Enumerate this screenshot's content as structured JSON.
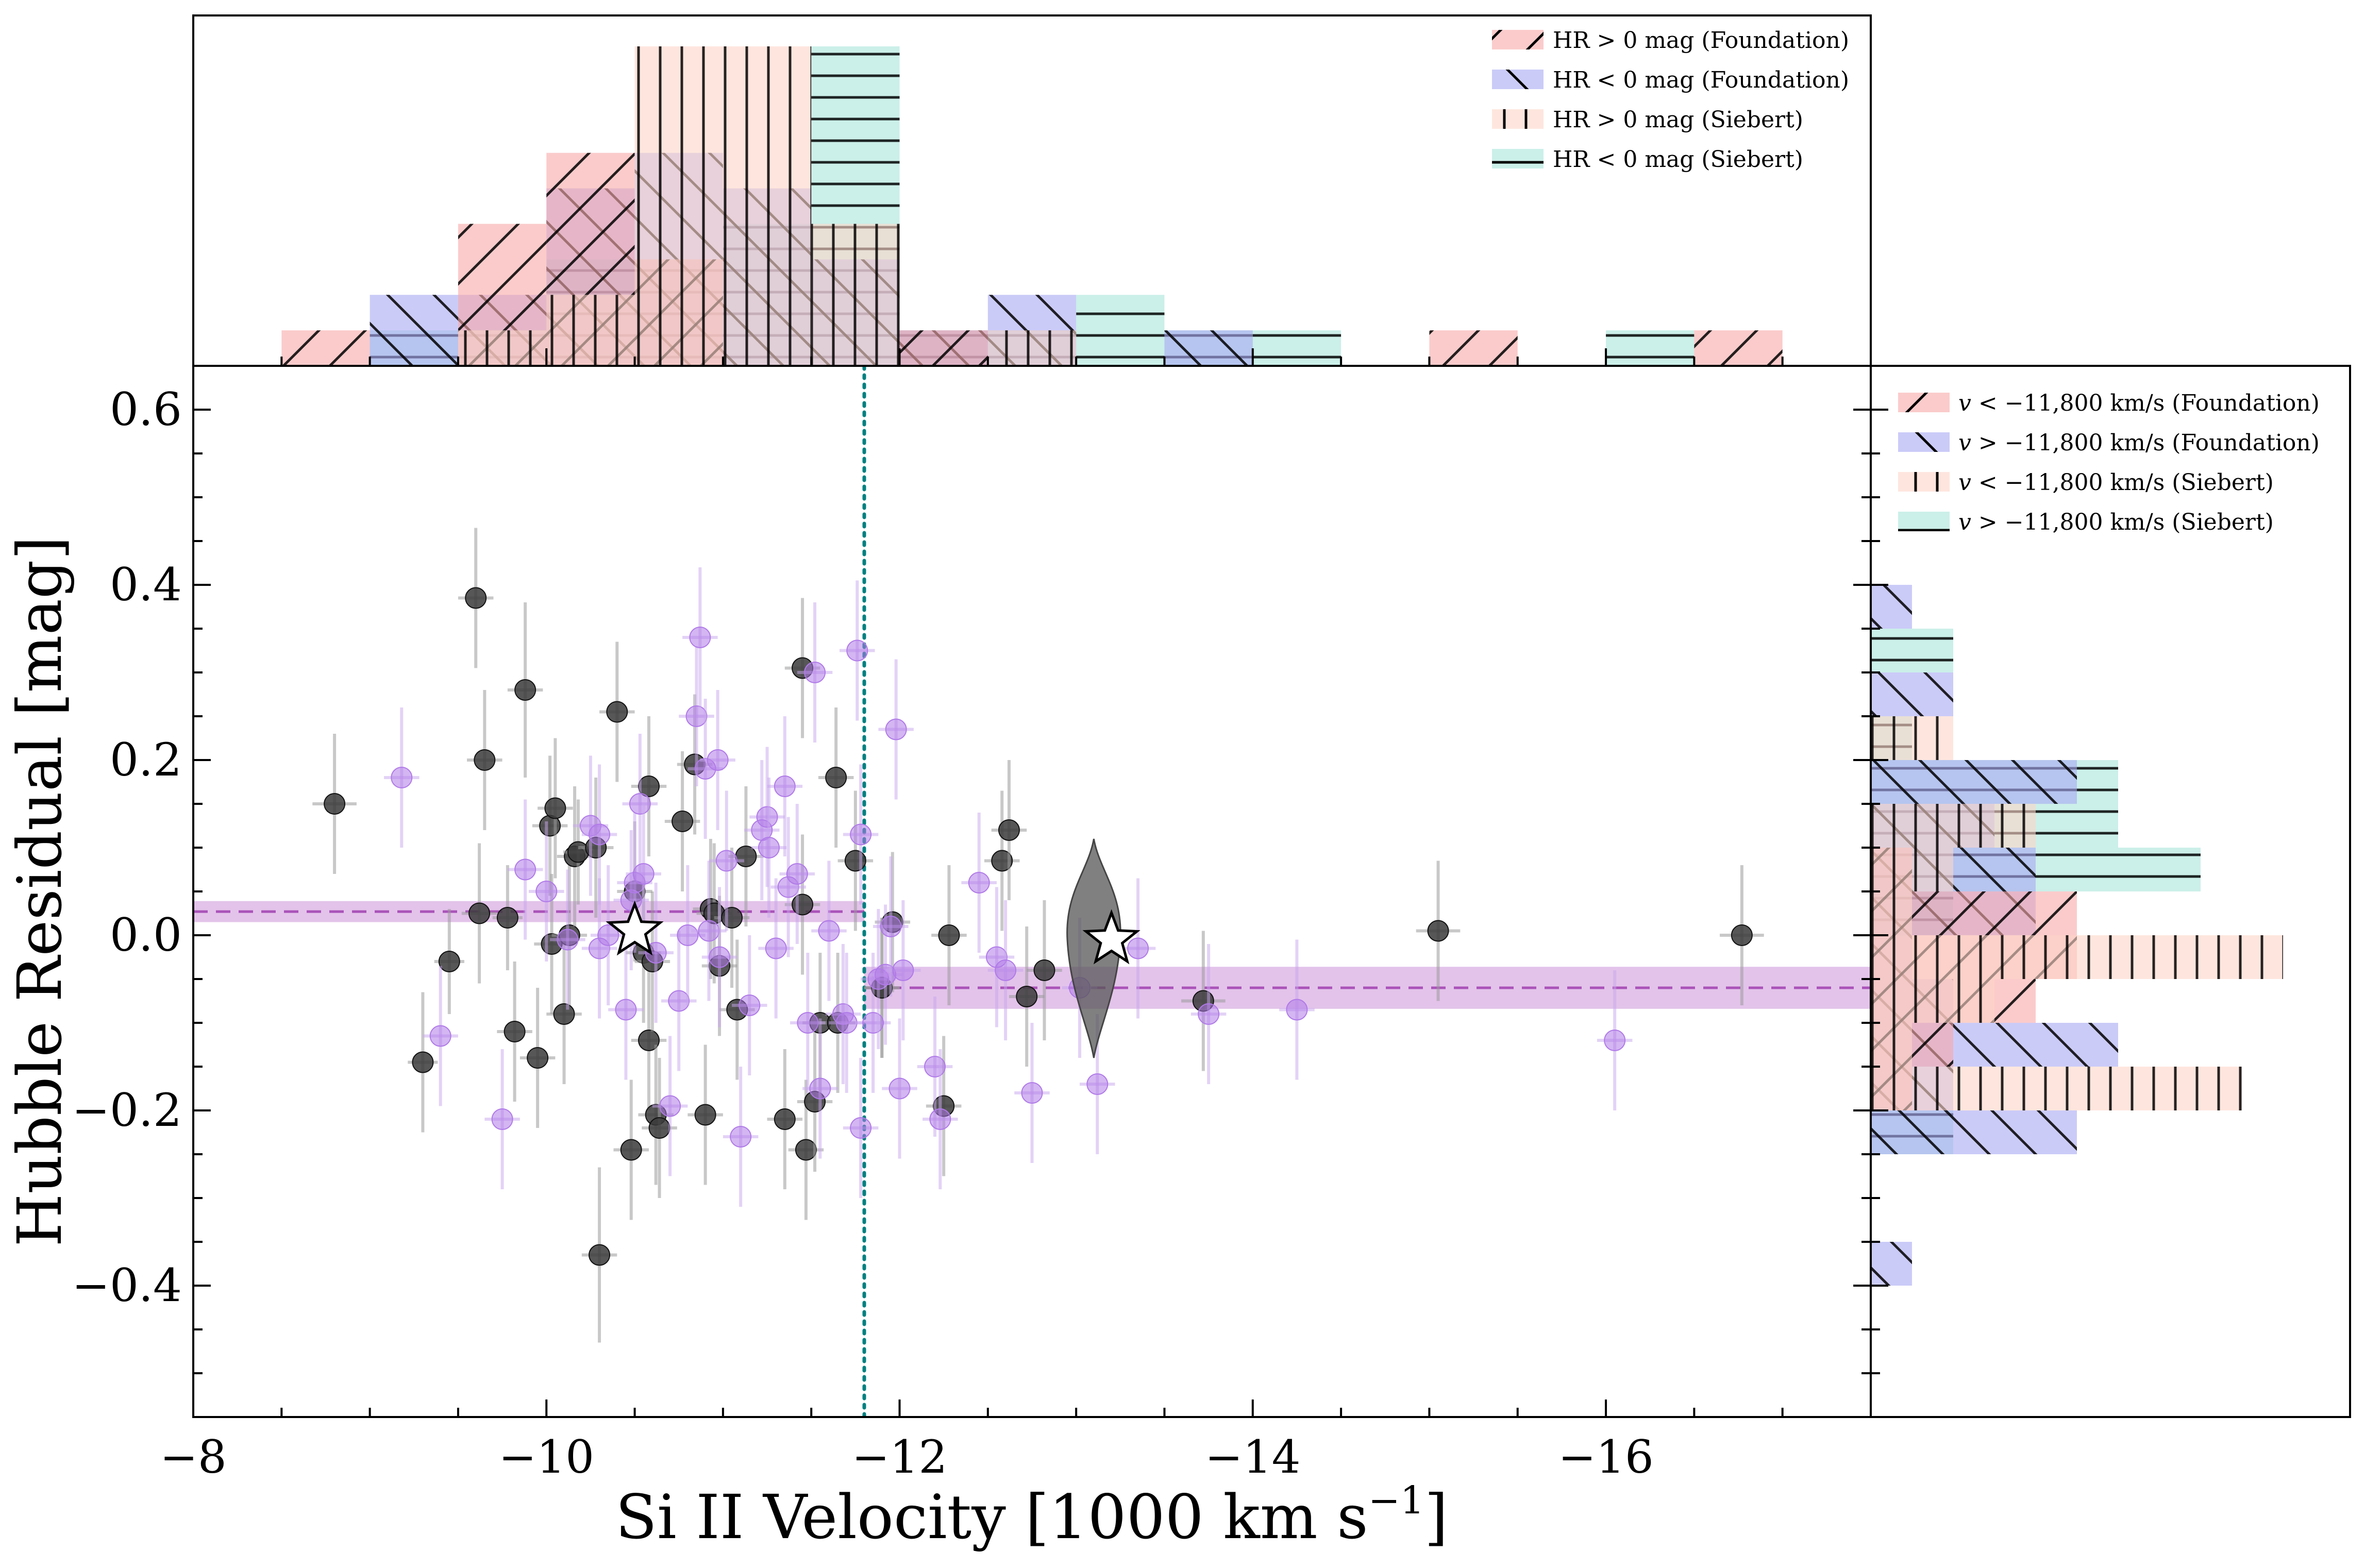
{
  "chart_data": {
    "type": "scatter",
    "xlabel": "Si II Velocity [1000 km s",
    "xlabel_sup": "−1",
    "xlabel_end": "]",
    "ylabel": "Hubble Residual [mag]",
    "xlim": [
      -8,
      -17.5
    ],
    "ylim": [
      -0.55,
      0.65
    ],
    "x_ticks": [
      {
        "value": -8,
        "label": "−8"
      },
      {
        "value": -10,
        "label": "−10"
      },
      {
        "value": -12,
        "label": "−12"
      },
      {
        "value": -14,
        "label": "−14"
      },
      {
        "value": -16,
        "label": "−16"
      }
    ],
    "y_ticks": [
      {
        "value": 0.6,
        "label": "0.6"
      },
      {
        "value": 0.4,
        "label": "0.4"
      },
      {
        "value": 0.2,
        "label": "0.2"
      },
      {
        "value": 0.0,
        "label": "0.0"
      },
      {
        "value": -0.2,
        "label": "−0.2"
      },
      {
        "value": -0.4,
        "label": "−0.4"
      }
    ],
    "split_velocity": -11.8,
    "colors": {
      "foundation_points": "#3a3a3a",
      "siebert_points": "#b07ae8",
      "mean_band": "#c07ad0",
      "mean_line": "#a040b0",
      "split_line": "#008080",
      "hr_pos_foundation": "#f9a8a8",
      "hr_neg_foundation": "#a8a8f4",
      "hr_pos_siebert": "#fdd5c8",
      "hr_neg_siebert": "#a8e4da"
    },
    "series": [
      {
        "key": "foundation",
        "points": [
          [
            -8.8,
            0.15,
            0.25,
            0.16
          ],
          [
            -9.3,
            -0.145,
            0.17,
            0.16
          ],
          [
            -9.45,
            -0.03,
            0.17,
            0.12
          ],
          [
            -9.6,
            0.385,
            0.2,
            0.16
          ],
          [
            -9.65,
            0.2,
            0.2,
            0.16
          ],
          [
            -9.62,
            0.025,
            0.2,
            0.16
          ],
          [
            -9.78,
            0.02,
            0.17,
            0.12
          ],
          [
            -9.82,
            -0.11,
            0.2,
            0.16
          ],
          [
            -9.88,
            0.28,
            0.2,
            0.2
          ],
          [
            -9.95,
            -0.14,
            0.2,
            0.16
          ],
          [
            -10.02,
            0.125,
            0.2,
            0.16
          ],
          [
            -10.05,
            0.145,
            0.2,
            0.16
          ],
          [
            -10.03,
            -0.01,
            0.2,
            0.16
          ],
          [
            -10.1,
            -0.09,
            0.2,
            0.16
          ],
          [
            -10.13,
            0.0,
            0.2,
            0.16
          ],
          [
            -10.16,
            0.09,
            0.2,
            0.16
          ],
          [
            -10.18,
            0.095,
            0.17,
            0.12
          ],
          [
            -10.28,
            0.1,
            0.2,
            0.16
          ],
          [
            -10.3,
            -0.365,
            0.2,
            0.2
          ],
          [
            -10.4,
            0.255,
            0.2,
            0.16
          ],
          [
            -10.48,
            -0.245,
            0.2,
            0.16
          ],
          [
            -10.5,
            0.05,
            0.2,
            0.16
          ],
          [
            -10.55,
            -0.02,
            0.2,
            0.16
          ],
          [
            -10.58,
            0.17,
            0.2,
            0.16
          ],
          [
            -10.58,
            -0.12,
            0.2,
            0.16
          ],
          [
            -10.6,
            -0.03,
            0.2,
            0.16
          ],
          [
            -10.62,
            -0.205,
            0.2,
            0.16
          ],
          [
            -10.64,
            -0.22,
            0.2,
            0.16
          ],
          [
            -10.77,
            0.13,
            0.2,
            0.16
          ],
          [
            -10.84,
            0.195,
            0.2,
            0.16
          ],
          [
            -10.9,
            -0.205,
            0.2,
            0.16
          ],
          [
            -10.93,
            0.03,
            0.2,
            0.16
          ],
          [
            -10.95,
            0.025,
            0.2,
            0.16
          ],
          [
            -10.98,
            -0.035,
            0.2,
            0.16
          ],
          [
            -11.05,
            0.02,
            0.2,
            0.16
          ],
          [
            -11.08,
            -0.085,
            0.2,
            0.16
          ],
          [
            -11.13,
            0.09,
            0.2,
            0.16
          ],
          [
            -11.35,
            -0.21,
            0.2,
            0.16
          ],
          [
            -11.45,
            0.305,
            0.2,
            0.16
          ],
          [
            -11.47,
            -0.245,
            0.2,
            0.16
          ],
          [
            -11.52,
            -0.19,
            0.2,
            0.16
          ],
          [
            -11.55,
            -0.1,
            0.2,
            0.16
          ],
          [
            -11.64,
            0.18,
            0.2,
            0.16
          ],
          [
            -11.65,
            -0.1,
            0.2,
            0.16
          ],
          [
            -11.75,
            0.085,
            0.2,
            0.16
          ],
          [
            -11.9,
            -0.06,
            0.2,
            0.16
          ],
          [
            -11.96,
            0.015,
            0.2,
            0.16
          ],
          [
            -12.28,
            0.0,
            0.2,
            0.16
          ],
          [
            -12.25,
            -0.195,
            0.2,
            0.16
          ],
          [
            -12.58,
            0.085,
            0.2,
            0.16
          ],
          [
            -12.62,
            0.12,
            0.2,
            0.16
          ],
          [
            -12.72,
            -0.07,
            0.2,
            0.16
          ],
          [
            -12.82,
            -0.04,
            0.2,
            0.16
          ],
          [
            -13.72,
            -0.075,
            0.25,
            0.16
          ],
          [
            -15.05,
            0.005,
            0.25,
            0.16
          ],
          [
            -16.77,
            0.0,
            0.25,
            0.16
          ],
          [
            -11.45,
            0.035,
            0.2,
            0.16
          ],
          [
            -11.9,
            -0.06,
            0.2,
            0.16
          ]
        ]
      },
      {
        "key": "siebert",
        "points": [
          [
            -9.18,
            0.18,
            0.2,
            0.16
          ],
          [
            -9.4,
            -0.115,
            0.2,
            0.16
          ],
          [
            -9.75,
            -0.21,
            0.2,
            0.16
          ],
          [
            -9.88,
            0.075,
            0.2,
            0.16
          ],
          [
            -10.0,
            0.05,
            0.2,
            0.16
          ],
          [
            -10.12,
            -0.005,
            0.2,
            0.16
          ],
          [
            -10.25,
            0.125,
            0.2,
            0.16
          ],
          [
            -10.3,
            0.115,
            0.2,
            0.16
          ],
          [
            -10.3,
            -0.015,
            0.2,
            0.16
          ],
          [
            -10.35,
            0.0,
            0.2,
            0.16
          ],
          [
            -10.45,
            -0.085,
            0.2,
            0.16
          ],
          [
            -10.48,
            0.04,
            0.2,
            0.16
          ],
          [
            -10.5,
            0.06,
            0.2,
            0.16
          ],
          [
            -10.53,
            0.15,
            0.2,
            0.16
          ],
          [
            -10.55,
            0.07,
            0.2,
            0.16
          ],
          [
            -10.62,
            -0.02,
            0.2,
            0.16
          ],
          [
            -10.7,
            -0.195,
            0.2,
            0.16
          ],
          [
            -10.75,
            -0.075,
            0.2,
            0.16
          ],
          [
            -10.8,
            0.0,
            0.2,
            0.16
          ],
          [
            -10.85,
            0.25,
            0.2,
            0.16
          ],
          [
            -10.87,
            0.34,
            0.2,
            0.16
          ],
          [
            -10.9,
            0.19,
            0.2,
            0.16
          ],
          [
            -10.92,
            0.005,
            0.2,
            0.16
          ],
          [
            -10.97,
            0.2,
            0.2,
            0.16
          ],
          [
            -10.98,
            -0.025,
            0.2,
            0.16
          ],
          [
            -11.02,
            0.085,
            0.2,
            0.16
          ],
          [
            -11.1,
            -0.23,
            0.2,
            0.16
          ],
          [
            -11.15,
            -0.08,
            0.2,
            0.16
          ],
          [
            -11.22,
            0.12,
            0.2,
            0.16
          ],
          [
            -11.25,
            0.135,
            0.2,
            0.16
          ],
          [
            -11.26,
            0.1,
            0.2,
            0.16
          ],
          [
            -11.3,
            -0.015,
            0.2,
            0.16
          ],
          [
            -11.35,
            0.17,
            0.2,
            0.16
          ],
          [
            -11.37,
            0.055,
            0.2,
            0.16
          ],
          [
            -11.42,
            0.07,
            0.2,
            0.16
          ],
          [
            -11.48,
            -0.1,
            0.2,
            0.16
          ],
          [
            -11.52,
            0.3,
            0.2,
            0.16
          ],
          [
            -11.55,
            -0.175,
            0.2,
            0.16
          ],
          [
            -11.6,
            0.005,
            0.2,
            0.16
          ],
          [
            -11.68,
            -0.09,
            0.2,
            0.16
          ],
          [
            -11.7,
            -0.1,
            0.2,
            0.16
          ],
          [
            -11.76,
            0.325,
            0.2,
            0.16
          ],
          [
            -11.78,
            0.115,
            0.2,
            0.16
          ],
          [
            -11.78,
            -0.22,
            0.2,
            0.16
          ],
          [
            -11.85,
            -0.1,
            0.2,
            0.16
          ],
          [
            -11.88,
            -0.05,
            0.2,
            0.16
          ],
          [
            -11.92,
            -0.045,
            0.2,
            0.16
          ],
          [
            -11.95,
            0.01,
            0.2,
            0.16
          ],
          [
            -11.98,
            0.235,
            0.2,
            0.16
          ],
          [
            -12.0,
            -0.175,
            0.2,
            0.16
          ],
          [
            -12.02,
            -0.04,
            0.2,
            0.16
          ],
          [
            -12.2,
            -0.15,
            0.2,
            0.16
          ],
          [
            -12.23,
            -0.21,
            0.2,
            0.16
          ],
          [
            -12.45,
            0.06,
            0.2,
            0.16
          ],
          [
            -12.55,
            -0.025,
            0.2,
            0.16
          ],
          [
            -12.6,
            -0.04,
            0.2,
            0.16
          ],
          [
            -12.75,
            -0.18,
            0.2,
            0.16
          ],
          [
            -13.02,
            -0.06,
            0.2,
            0.16
          ],
          [
            -13.12,
            -0.17,
            0.2,
            0.16
          ],
          [
            -13.35,
            -0.015,
            0.2,
            0.16
          ],
          [
            -13.75,
            -0.09,
            0.2,
            0.16
          ],
          [
            -14.25,
            -0.085,
            0.2,
            0.16
          ],
          [
            -16.05,
            -0.12,
            0.2,
            0.16
          ]
        ]
      }
    ],
    "mean_levels": [
      {
        "x_range": [
          -8,
          -11.8
        ],
        "y": 0.027,
        "err": 0.012
      },
      {
        "x_range": [
          -11.8,
          -17.5
        ],
        "y": -0.06,
        "err": 0.024
      }
    ],
    "star_markers": [
      {
        "x": -10.5,
        "y": 0.005
      },
      {
        "x": -13.2,
        "y": -0.005
      }
    ],
    "violin": {
      "x": -13.1,
      "y_min": -0.14,
      "y_max": 0.11,
      "y_center": -0.005,
      "half_width": 0.15
    },
    "top_histogram": {
      "bin_edges": [
        -8.5,
        -9.0,
        -9.5,
        -10.0,
        -10.5,
        -11.0,
        -11.5,
        -12.0,
        -12.5,
        -13.0,
        -13.5,
        -14.0,
        -14.5,
        -15.0,
        -15.5,
        -16.0,
        -16.5,
        -17.0
      ],
      "series": [
        {
          "key": "hr_pos_foundation",
          "hatch": "/",
          "counts": [
            1,
            0,
            4,
            6,
            3,
            0,
            0,
            1,
            0,
            0,
            0,
            0,
            0,
            1,
            0,
            0,
            1
          ]
        },
        {
          "key": "hr_neg_foundation",
          "hatch": "\\",
          "counts": [
            0,
            2,
            2,
            5,
            6,
            5,
            3,
            1,
            2,
            0,
            1,
            0,
            0,
            0,
            0,
            0,
            0
          ]
        },
        {
          "key": "hr_pos_siebert",
          "hatch": "|",
          "counts": [
            0,
            0,
            1,
            2,
            9,
            9,
            4,
            0,
            1,
            0,
            0,
            0,
            0,
            0,
            0,
            0,
            0
          ]
        },
        {
          "key": "hr_neg_siebert",
          "hatch": "-",
          "counts": [
            0,
            1,
            1,
            3,
            3,
            4,
            9,
            1,
            1,
            2,
            1,
            1,
            0,
            0,
            0,
            1,
            0
          ]
        }
      ]
    },
    "right_histogram": {
      "bin_edges": [
        0.4,
        0.35,
        0.3,
        0.25,
        0.2,
        0.15,
        0.1,
        0.05,
        0.0,
        -0.05,
        -0.1,
        -0.15,
        -0.2,
        -0.25,
        -0.3,
        -0.35,
        -0.4
      ],
      "series": [
        {
          "key": "v_slow_foundation",
          "hatch": "/",
          "counts": [
            0,
            0,
            0,
            0,
            0,
            0,
            1,
            5,
            5,
            4,
            2,
            1,
            0,
            0,
            0,
            0
          ]
        },
        {
          "key": "v_fast_foundation",
          "hatch": "\\",
          "counts": [
            1,
            0,
            2,
            0,
            5,
            3,
            4,
            4,
            1,
            2,
            6,
            2,
            5,
            0,
            0,
            1
          ]
        },
        {
          "key": "v_slow_siebert",
          "hatch": "|",
          "counts": [
            0,
            0,
            0,
            2,
            0,
            4,
            2,
            1,
            10,
            3,
            1,
            9,
            0,
            0,
            0,
            0
          ]
        },
        {
          "key": "v_fast_siebert",
          "hatch": "-",
          "counts": [
            0,
            2,
            0,
            1,
            6,
            6,
            8,
            2,
            0,
            0,
            0,
            0,
            2,
            0,
            0,
            0
          ]
        }
      ]
    },
    "legend_top": [
      {
        "key": "hr_pos_foundation",
        "label": "HR > 0 mag (Foundation)"
      },
      {
        "key": "hr_neg_foundation",
        "label": "HR < 0 mag (Foundation)"
      },
      {
        "key": "hr_pos_siebert",
        "label": "HR > 0 mag (Siebert)"
      },
      {
        "key": "hr_neg_siebert",
        "label": "HR < 0 mag (Siebert)"
      }
    ],
    "legend_right": [
      {
        "key": "v_slow_foundation",
        "var": "v",
        "label": " < −11,800 km/s (Foundation)"
      },
      {
        "key": "v_fast_foundation",
        "var": "v",
        "label": " > −11,800 km/s (Foundation)"
      },
      {
        "key": "v_slow_siebert",
        "var": "v",
        "label": " < −11,800 km/s (Siebert)"
      },
      {
        "key": "v_fast_siebert",
        "var": "v",
        "label": " > −11,800 km/s (Siebert)"
      }
    ]
  }
}
